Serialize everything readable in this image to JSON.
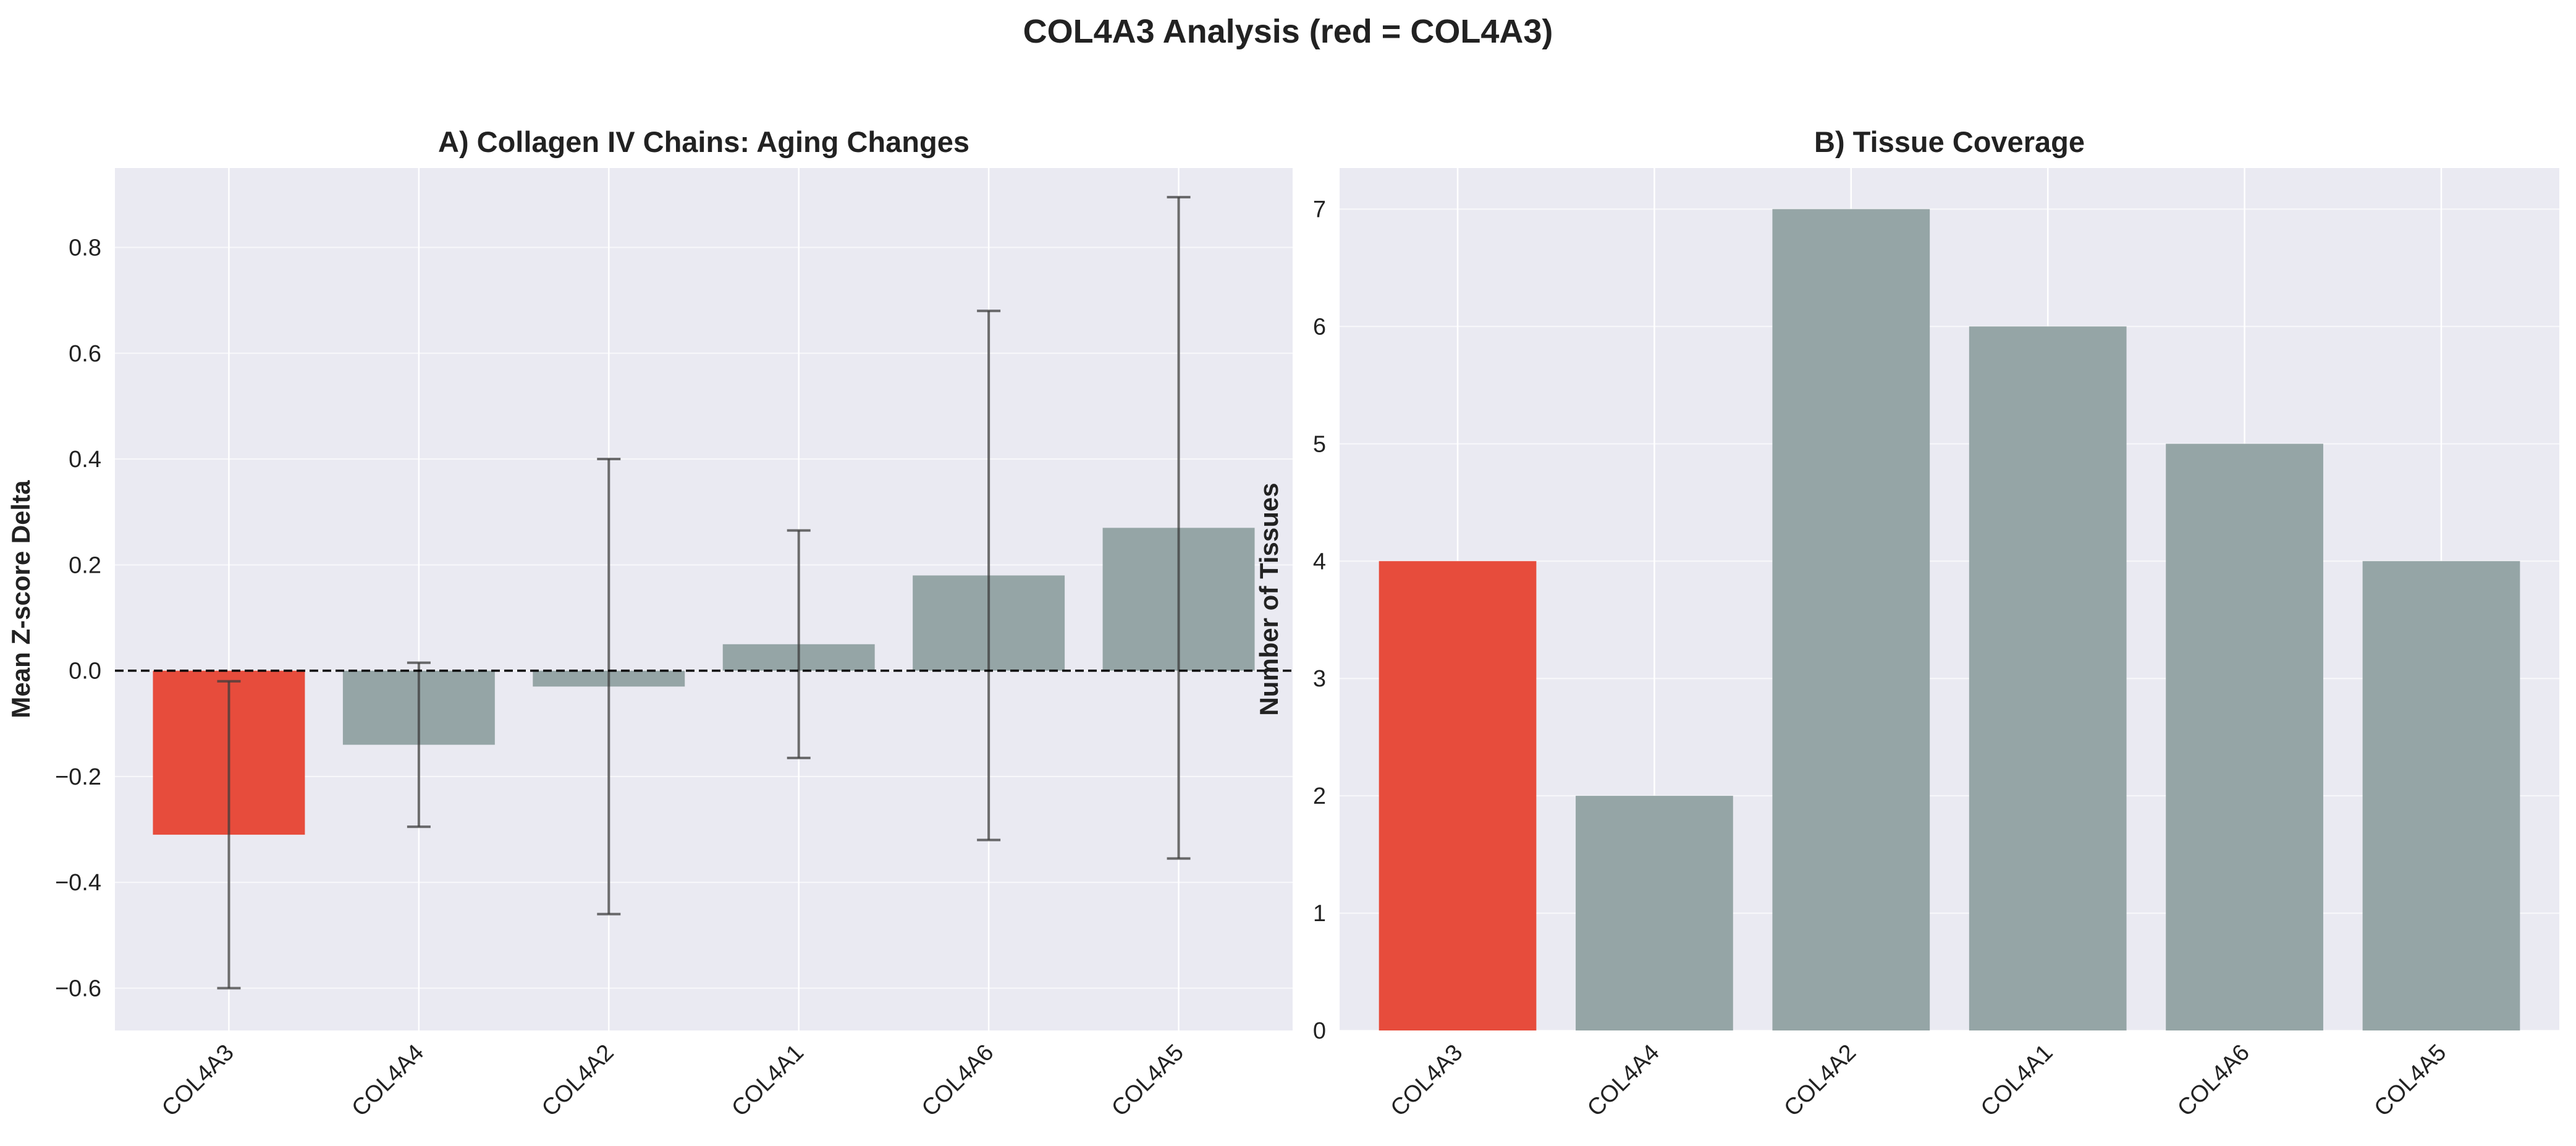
{
  "figure_title": "COL4A3 Analysis (red = COL4A3)",
  "colors": {
    "highlight": "#e74c3c",
    "other": "#95a5a6",
    "background": "#eaeaf2",
    "grid": "#ffffff",
    "error_bar": "#3d3d3d",
    "zero_line": "#000000"
  },
  "chart_data": [
    {
      "type": "bar",
      "title": "A) Collagen IV Chains: Aging Changes",
      "xlabel": "",
      "ylabel": "Mean Z-score Delta",
      "categories": [
        "COL4A3",
        "COL4A4",
        "COL4A2",
        "COL4A1",
        "COL4A6",
        "COL4A5"
      ],
      "values": [
        -0.31,
        -0.14,
        -0.03,
        0.05,
        0.18,
        0.27
      ],
      "error": [
        0.29,
        0.155,
        0.43,
        0.215,
        0.5,
        0.625
      ],
      "highlight": "COL4A3",
      "ylim": [
        -0.68,
        0.95
      ],
      "yticks": [
        -0.6,
        -0.4,
        -0.2,
        0.0,
        0.2,
        0.4,
        0.6,
        0.8
      ],
      "ytick_labels": [
        "−0.6",
        "−0.4",
        "−0.2",
        "0.0",
        "0.2",
        "0.4",
        "0.6",
        "0.8"
      ],
      "reference_line": 0,
      "grid": true
    },
    {
      "type": "bar",
      "title": "B) Tissue Coverage",
      "xlabel": "",
      "ylabel": "Number of Tissues",
      "categories": [
        "COL4A3",
        "COL4A4",
        "COL4A2",
        "COL4A1",
        "COL4A6",
        "COL4A5"
      ],
      "values": [
        4,
        2,
        7,
        6,
        5,
        4
      ],
      "highlight": "COL4A3",
      "ylim": [
        0,
        7.35
      ],
      "yticks": [
        0,
        1,
        2,
        3,
        4,
        5,
        6,
        7
      ],
      "ytick_labels": [
        "0",
        "1",
        "2",
        "3",
        "4",
        "5",
        "6",
        "7"
      ],
      "grid": true
    }
  ]
}
